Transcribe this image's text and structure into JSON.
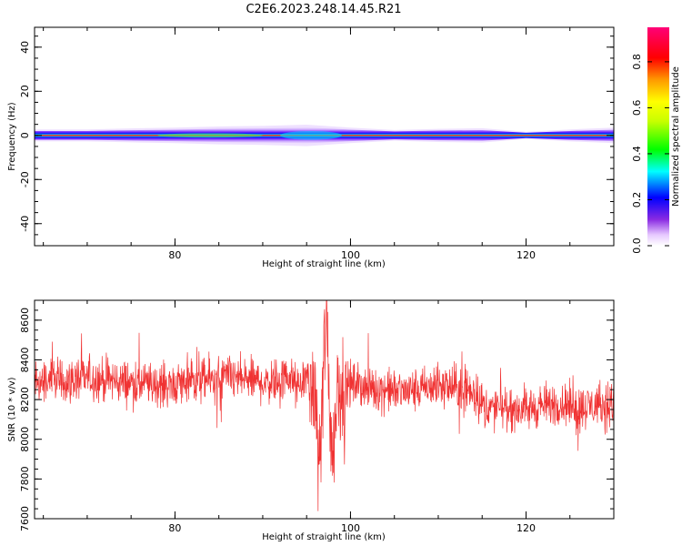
{
  "figure_title": "C2E6.2023.248.14.45.R21",
  "chart_data": [
    {
      "type": "heatmap",
      "xlabel": "Height of straight line (km)",
      "ylabel": "Frequency (Hz)",
      "xlim": [
        64,
        130
      ],
      "ylim": [
        -50,
        49
      ],
      "xticks": [
        80,
        100,
        120
      ],
      "yticks": [
        -40,
        -20,
        0,
        20,
        40
      ],
      "colorbar": {
        "label": "Normalized spectral amplitude",
        "ticks": [
          0.0,
          0.2,
          0.4,
          0.6,
          0.8
        ],
        "range": [
          0,
          0.95
        ]
      },
      "band_center_hz": 0,
      "band_halfwidth_hz": [
        [
          64,
          2.0
        ],
        [
          70,
          2.0
        ],
        [
          76,
          2.4
        ],
        [
          80,
          2.6
        ],
        [
          85,
          3.0
        ],
        [
          90,
          3.2
        ],
        [
          95,
          3.6
        ],
        [
          100,
          2.6
        ],
        [
          105,
          1.8
        ],
        [
          110,
          2.2
        ],
        [
          115,
          2.4
        ],
        [
          120,
          1.2
        ],
        [
          125,
          2.0
        ],
        [
          130,
          2.6
        ]
      ]
    },
    {
      "type": "line",
      "xlabel": "Height of straight line (km)",
      "ylabel": "SNR (10 * v/v)",
      "xlim": [
        64,
        130
      ],
      "ylim": [
        7600,
        8700
      ],
      "xticks": [
        80,
        100,
        120
      ],
      "yticks": [
        7600,
        7800,
        8000,
        8200,
        8400,
        8600
      ],
      "color": "#f03232",
      "series": [
        {
          "x": [
            64,
            66,
            68,
            70,
            72,
            74,
            76,
            78,
            80,
            82,
            84,
            86,
            88,
            90,
            92,
            93,
            94,
            95,
            96,
            96.5,
            97,
            97.3,
            97.6,
            98,
            98.5,
            99,
            100,
            102,
            104,
            106,
            108,
            110,
            112,
            114,
            115,
            116,
            118,
            120,
            122,
            124,
            126,
            128,
            130
          ],
          "y": [
            8280,
            8300,
            8290,
            8310,
            8300,
            8290,
            8280,
            8270,
            8280,
            8290,
            8300,
            8310,
            8300,
            8290,
            8300,
            8320,
            8250,
            8330,
            8200,
            7850,
            8500,
            8650,
            8200,
            7900,
            8300,
            8250,
            8280,
            8260,
            8250,
            8240,
            8250,
            8270,
            8260,
            8240,
            8180,
            8150,
            8160,
            8150,
            8170,
            8180,
            8160,
            8170,
            8180
          ]
        }
      ]
    }
  ],
  "colors": {
    "line": "#f03232",
    "background": "#ffffff",
    "axes": "#000000"
  }
}
